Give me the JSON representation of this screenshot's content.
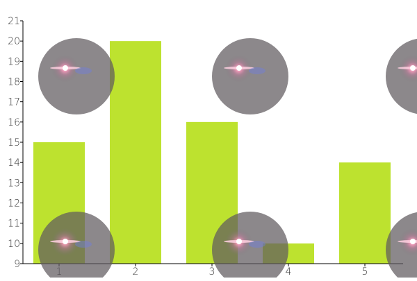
{
  "chart_data": {
    "type": "bar",
    "categories": [
      "1",
      "2",
      "3",
      "4",
      "5"
    ],
    "values": [
      15,
      20,
      16,
      10,
      14
    ],
    "ylim": [
      9,
      21
    ],
    "yticks": [
      "9",
      "10",
      "11",
      "12",
      "13",
      "14",
      "15",
      "16",
      "17",
      "18",
      "19",
      "20",
      "21"
    ],
    "grid": false,
    "bar_color": "#bde22f",
    "decorations": "lens-flare-circles"
  }
}
